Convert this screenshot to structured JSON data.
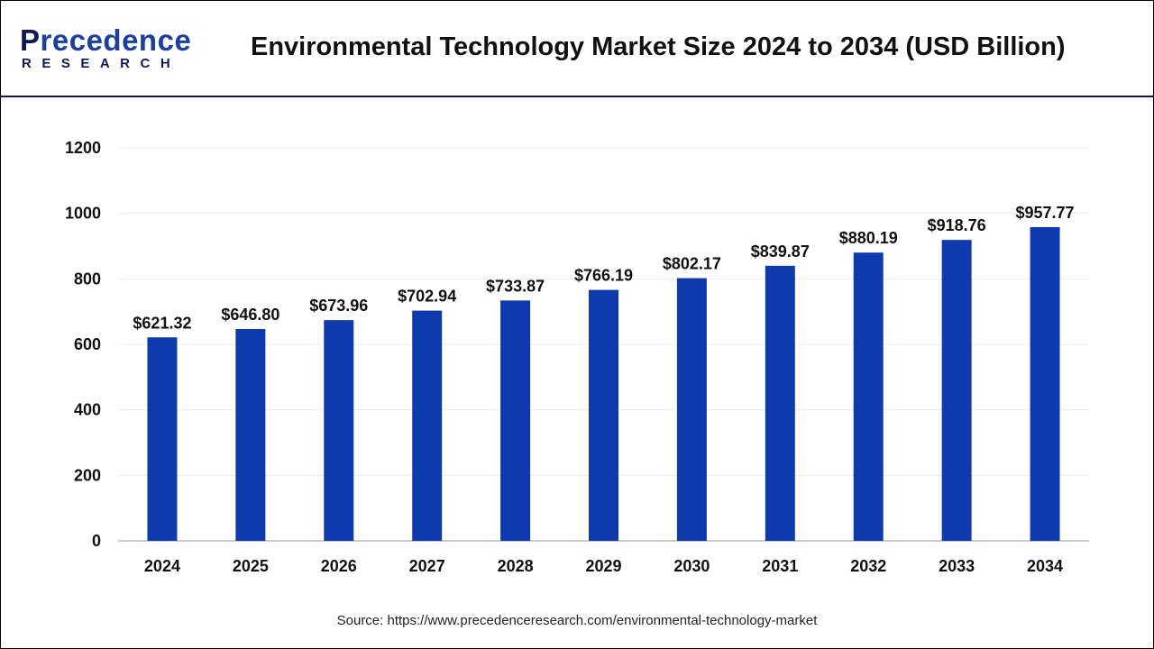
{
  "logo": {
    "line1_first": "P",
    "line1_rest": "recedence",
    "line2": "RESEARCH"
  },
  "source": "Source: https://www.precedenceresearch.com/environmental-technology-market",
  "chart_data": {
    "type": "bar",
    "title": "Environmental Technology Market Size 2024 to 2034 (USD Billion)",
    "categories": [
      "2024",
      "2025",
      "2026",
      "2027",
      "2028",
      "2029",
      "2030",
      "2031",
      "2032",
      "2033",
      "2034"
    ],
    "values": [
      621.32,
      646.8,
      673.96,
      702.94,
      733.87,
      766.19,
      802.17,
      839.87,
      880.19,
      918.76,
      957.77
    ],
    "data_labels": [
      "$621.32",
      "$646.80",
      "$673.96",
      "$702.94",
      "$733.87",
      "$766.19",
      "$802.17",
      "$839.87",
      "$880.19",
      "$918.76",
      "$957.77"
    ],
    "yticks": [
      0,
      200,
      400,
      600,
      800,
      1000,
      1200
    ],
    "ylim": [
      0,
      1200
    ],
    "xlabel": "",
    "ylabel": "",
    "grid": true,
    "bar_color": "#0f3aad"
  }
}
